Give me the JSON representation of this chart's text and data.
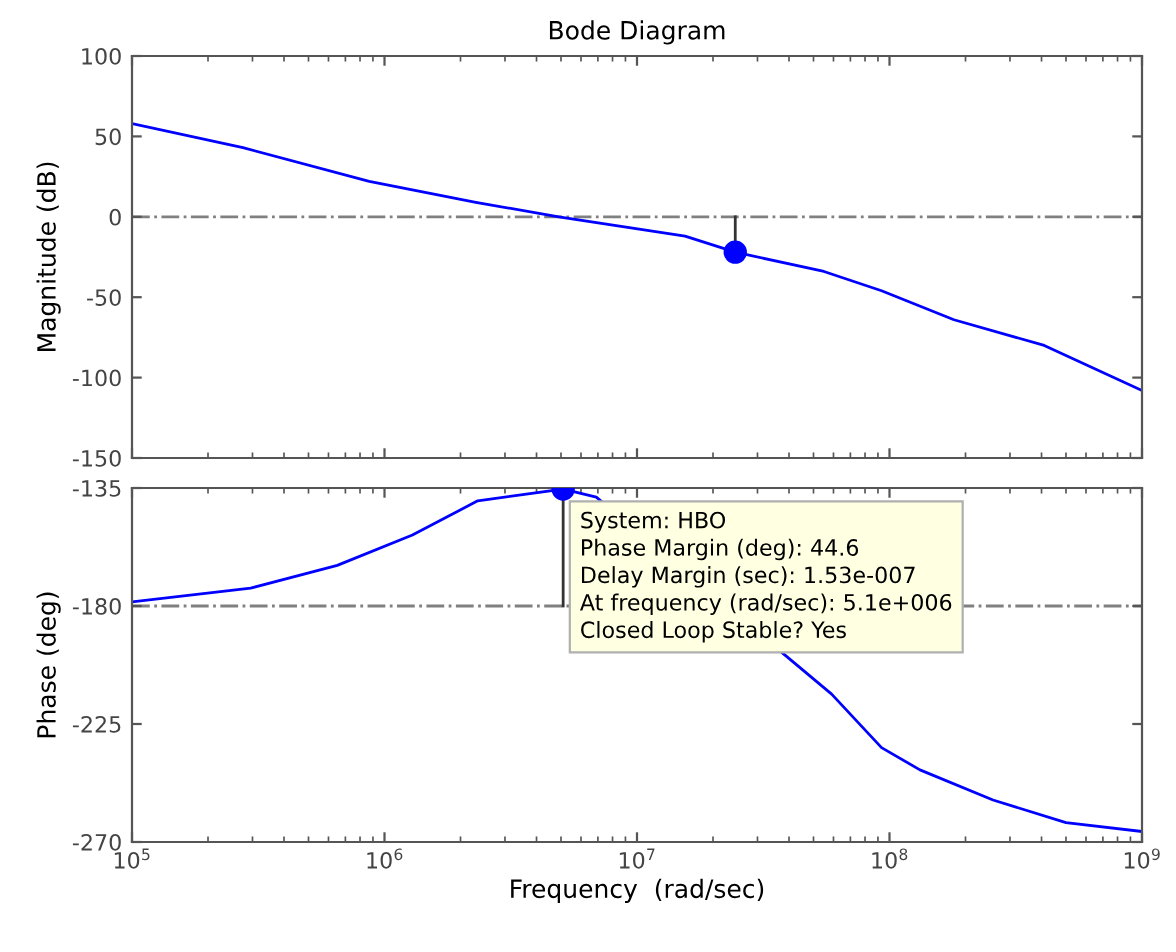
{
  "chart_data": [
    {
      "type": "line",
      "title": "Bode Diagram",
      "ylabel": "Magnitude (dB)",
      "log": "x",
      "grid": false,
      "tick_labels": "y",
      "xlim": [
        100000,
        1000000000
      ],
      "xticks": [
        {
          "value": 100000,
          "label": null
        },
        {
          "value": 1000000,
          "label": null
        },
        {
          "value": 10000000,
          "label": null
        },
        {
          "value": 100000000,
          "label": null
        },
        {
          "value": 1000000000,
          "label": null
        }
      ],
      "ylim": [
        -150,
        100
      ],
      "yticks": [
        -150,
        -100,
        -50,
        0,
        50,
        100
      ],
      "ref_lines": [
        {
          "axis": "y",
          "value": 0,
          "color": "#808080",
          "line_style": "dashdot"
        }
      ],
      "series": [
        {
          "color": "#0000ff",
          "x": [
            100000,
            275000,
            870000,
            2300000,
            4900000,
            15500000,
            24500000,
            55000000,
            93000000,
            180000000,
            410000000,
            1000000000
          ],
          "values": [
            58,
            43,
            22,
            9,
            0,
            -12,
            -22,
            -34,
            -46,
            -64,
            -80,
            -108
          ]
        },
        {
          "color": "#333333",
          "x": [
            24500000,
            24500000
          ],
          "values": [
            0,
            -22
          ]
        },
        {
          "type": "scatter",
          "marker": "circle",
          "color": "#0000ff",
          "x": [
            24500000
          ],
          "values": [
            -22
          ]
        }
      ]
    },
    {
      "type": "line",
      "xlabel": "Frequency  (rad/sec)",
      "ylabel": "Phase (deg)",
      "log": "x",
      "grid": false,
      "xlim": [
        100000,
        1000000000
      ],
      "xticks": [
        {
          "value": 100000,
          "label": "10$^{5}$"
        },
        {
          "value": 1000000,
          "label": "10$^{6}$"
        },
        {
          "value": 10000000,
          "label": "10$^{7}$"
        },
        {
          "value": 100000000,
          "label": "10$^{8}$"
        },
        {
          "value": 1000000000,
          "label": "10$^{9}$"
        }
      ],
      "ylim": [
        -270,
        -135
      ],
      "yticks": [
        -270,
        -225,
        -180,
        -135
      ],
      "ref_lines": [
        {
          "axis": "y",
          "value": -180,
          "color": "#808080",
          "line_style": "dashdot"
        }
      ],
      "annotations": [
        {
          "text": "System: HBO\nPhase Margin (deg): 44.6\nDelay Margin (sec): 1.53e-007\nAt frequency (rad/sec): 5.1e+006\nClosed Loop Stable? Yes",
          "x": 5100000,
          "y": -135.4
        }
      ],
      "series": [
        {
          "color": "#0000ff",
          "x": [
            100000,
            295000,
            650000,
            1290000,
            2340000,
            5100000,
            6900000,
            59000000,
            93000000,
            132000000,
            257000000,
            500000000,
            1000000000
          ],
          "values": [
            -178.4,
            -173.2,
            -164.5,
            -152.9,
            -139.9,
            -135.4,
            -138.5,
            -213.6,
            -234,
            -242.5,
            -254,
            -262.6,
            -266
          ]
        },
        {
          "color": "#333333",
          "x": [
            5100000,
            5100000
          ],
          "values": [
            -180,
            -135.4
          ]
        },
        {
          "type": "scatter",
          "marker": "circle",
          "color": "#0000ff",
          "x": [
            5100000
          ],
          "values": [
            -135.4
          ]
        }
      ]
    }
  ]
}
